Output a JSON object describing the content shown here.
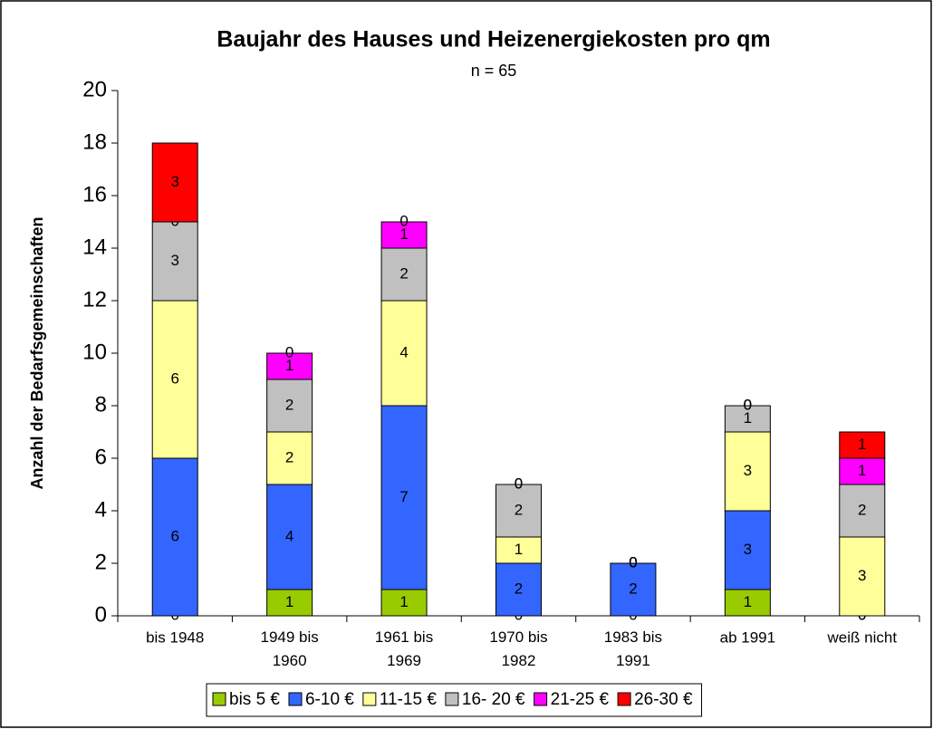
{
  "chart_data": {
    "type": "stacked_bar",
    "title": "Baujahr des Hauses und Heizenergiekosten pro qm",
    "subtitle": "n = 65",
    "y_label": "Anzahl der Bedarfsgemeinschaften",
    "categories": [
      "bis 1948",
      "1949 bis 1960",
      "1961 bis 1969",
      "1970 bis 1982",
      "1983 bis 1991",
      "ab 1991",
      "weiß nicht"
    ],
    "series": [
      {
        "name": "bis 5 €",
        "color": "#99cc00",
        "values": [
          0,
          1,
          1,
          0,
          0,
          1,
          0
        ]
      },
      {
        "name": "6-10 €",
        "color": "#3366ff",
        "values": [
          6,
          4,
          7,
          2,
          2,
          3,
          0
        ]
      },
      {
        "name": "11-15 €",
        "color": "#ffff99",
        "values": [
          6,
          2,
          4,
          1,
          0,
          3,
          3
        ]
      },
      {
        "name": "16- 20 €",
        "color": "#c0c0c0",
        "values": [
          3,
          2,
          2,
          2,
          0,
          1,
          2
        ]
      },
      {
        "name": "21-25 €",
        "color": "#ff00ff",
        "values": [
          0,
          1,
          1,
          0,
          0,
          0,
          1
        ]
      },
      {
        "name": "26-30 €",
        "color": "#ff0000",
        "values": [
          3,
          0,
          0,
          0,
          0,
          0,
          1
        ]
      }
    ],
    "ylim": [
      0,
      20
    ],
    "yticks": [
      0,
      2,
      4,
      6,
      8,
      10,
      12,
      14,
      16,
      18,
      20
    ],
    "legend": "bottom"
  }
}
